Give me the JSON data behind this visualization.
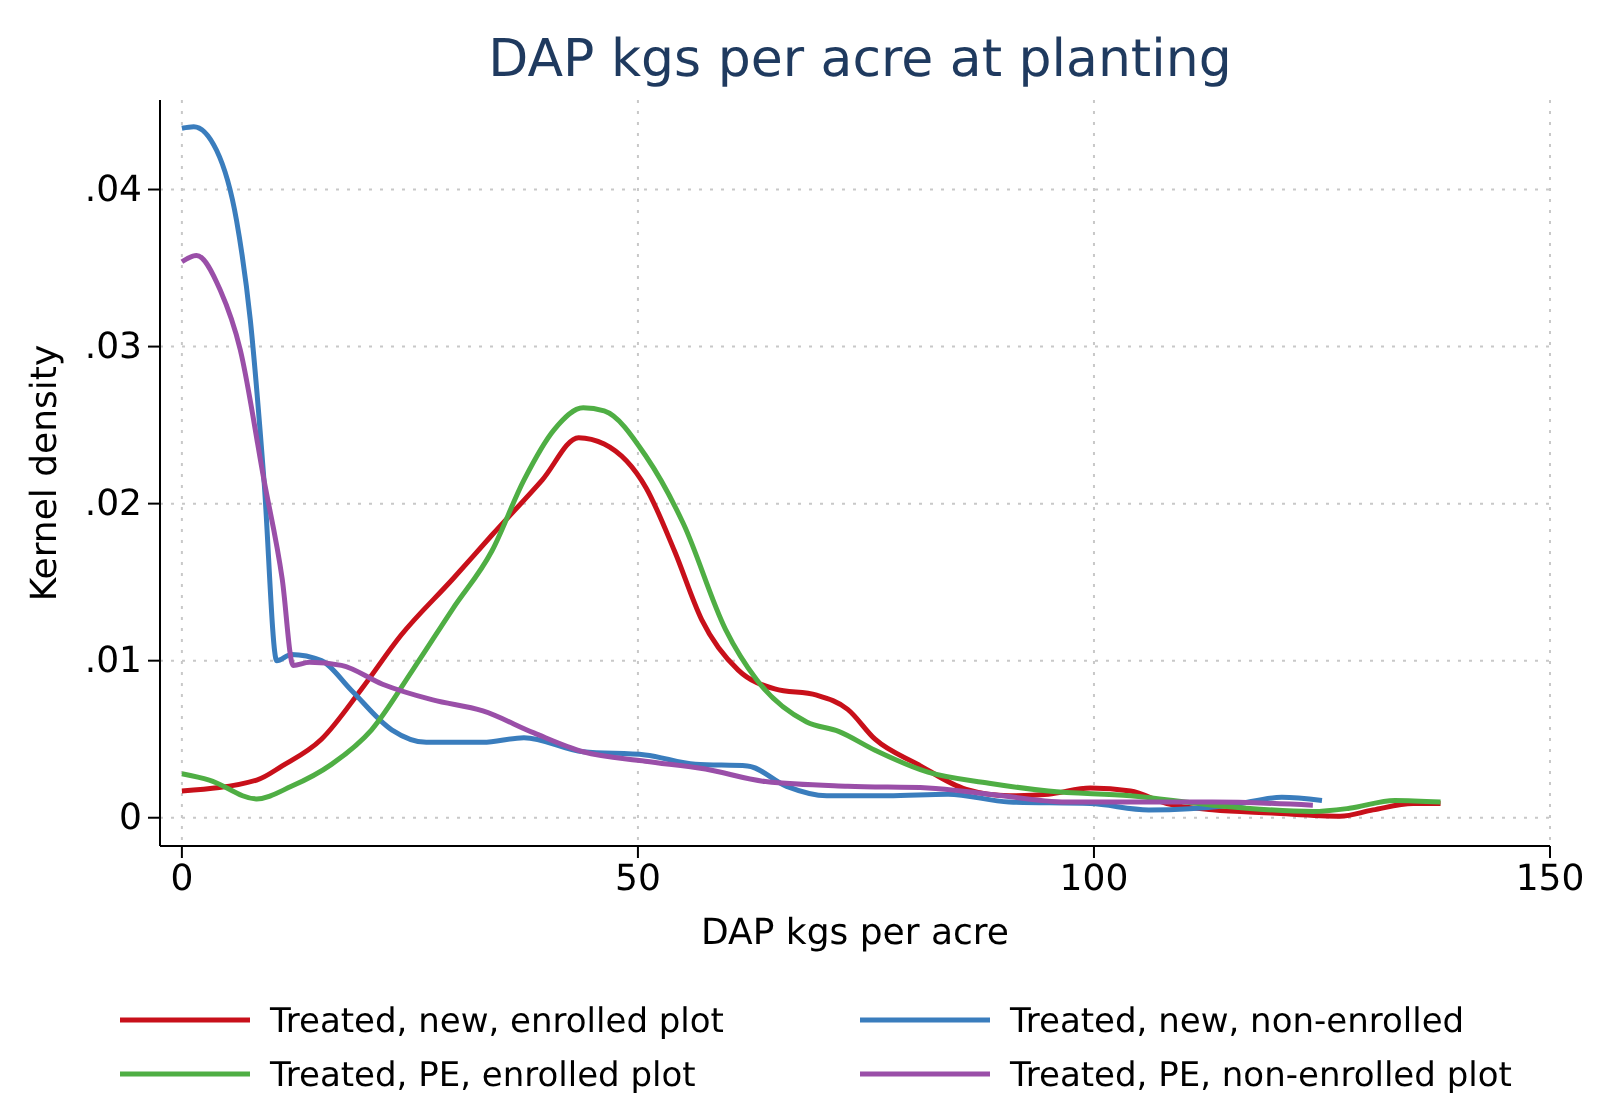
{
  "chart_data": {
    "type": "line",
    "title": "DAP kgs per acre at planting",
    "xlabel": "DAP kgs per acre",
    "ylabel": "Kernel density",
    "xlim": [
      -2.4,
      150
    ],
    "xticks": [
      0,
      50,
      100,
      150
    ],
    "ylim": [
      -0.0018,
      0.0457
    ],
    "yticks": [
      {
        "value": 0,
        "label": "0"
      },
      {
        "value": 0.01,
        "label": ".01"
      },
      {
        "value": 0.02,
        "label": ".02"
      },
      {
        "value": 0.03,
        "label": ".03"
      },
      {
        "value": 0.04,
        "label": ".04"
      }
    ],
    "grid": true,
    "legend": "bottom",
    "line_style": "solid",
    "marker": "none",
    "series": [
      {
        "name": "Treated, new, enrolled plot",
        "color": "#c8101a",
        "x": [
          0,
          8.2,
          11,
          15.3,
          19.7,
          24,
          29.7,
          34,
          39.5,
          43.5,
          46.3,
          50.9,
          54,
          57,
          61,
          65,
          69.6,
          73,
          76,
          80.7,
          86,
          90.7,
          95,
          99.6,
          104,
          108,
          113,
          119.5,
          127,
          130.6,
          135,
          138
        ],
        "values": [
          0.0017,
          0.0024,
          0.0033,
          0.005,
          0.0082,
          0.0116,
          0.0152,
          0.018,
          0.0215,
          0.0242,
          0.0238,
          0.021,
          0.017,
          0.0126,
          0.0094,
          0.0082,
          0.0078,
          0.0069,
          0.005,
          0.0034,
          0.0018,
          0.0014,
          0.0015,
          0.0019,
          0.0017,
          0.0009,
          0.0005,
          0.0003,
          0.0001,
          0.0005,
          0.0009,
          0.0009
        ]
      },
      {
        "name": "Treated, new, non-enrolled",
        "color": "#3a7dbd",
        "x": [
          0,
          1.3,
          3.8,
          6,
          7.5,
          9,
          10.4,
          12,
          15.3,
          18.6,
          23,
          26.8,
          33,
          37.5,
          44,
          50.8,
          56.3,
          62,
          66.3,
          70.7,
          77.4,
          84,
          90.7,
          99.6,
          106,
          115,
          120.6,
          125
        ],
        "values": [
          0.0439,
          0.044,
          0.0425,
          0.038,
          0.0317,
          0.0215,
          0.01,
          0.0104,
          0.01,
          0.0081,
          0.0056,
          0.0048,
          0.0048,
          0.0051,
          0.0042,
          0.004,
          0.0034,
          0.0033,
          0.002,
          0.0014,
          0.0014,
          0.0015,
          0.001,
          0.0009,
          0.0005,
          0.0008,
          0.0013,
          0.0011
        ]
      },
      {
        "name": "Treated, PE, enrolled plot",
        "color": "#4fae44",
        "x": [
          0,
          3,
          8.2,
          12,
          16.4,
          20.8,
          25.3,
          29.7,
          34,
          37.5,
          40.8,
          44,
          46.3,
          50.9,
          55,
          59.6,
          63,
          68.5,
          72,
          76,
          81.8,
          88.5,
          95,
          104,
          113,
          124,
          128,
          133,
          138
        ],
        "values": [
          0.0028,
          0.0024,
          0.0012,
          0.002,
          0.0034,
          0.0056,
          0.0094,
          0.0133,
          0.017,
          0.0215,
          0.0247,
          0.0261,
          0.0259,
          0.023,
          0.0187,
          0.012,
          0.0088,
          0.0061,
          0.0055,
          0.0043,
          0.0029,
          0.0022,
          0.0017,
          0.0014,
          0.0008,
          0.0004,
          0.0006,
          0.0011,
          0.001
        ]
      },
      {
        "name": "Treated, PE, non-enrolled plot",
        "color": "#9a4fa8",
        "x": [
          0,
          1.6,
          4.2,
          6.4,
          9,
          11,
          12.2,
          14,
          17.5,
          22,
          27.5,
          33,
          38.6,
          44,
          50.8,
          57.4,
          64,
          73,
          81.8,
          88.5,
          97,
          113,
          124
        ],
        "values": [
          0.0354,
          0.0358,
          0.0336,
          0.0298,
          0.0215,
          0.0152,
          0.0097,
          0.0099,
          0.0097,
          0.0085,
          0.0075,
          0.0068,
          0.0054,
          0.0042,
          0.0036,
          0.0031,
          0.0023,
          0.002,
          0.0019,
          0.0015,
          0.001,
          0.001,
          0.0008
        ]
      }
    ]
  }
}
